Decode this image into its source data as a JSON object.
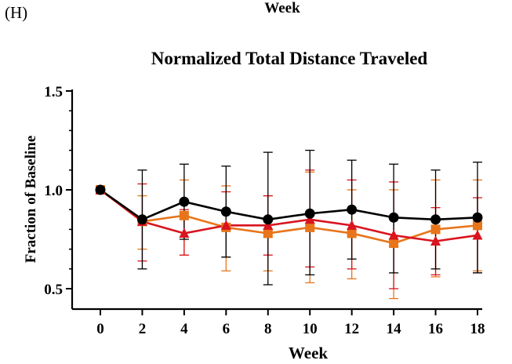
{
  "panel_label": "(H)",
  "top_label": "Week",
  "chart_data": {
    "type": "line",
    "title": "Normalized Total  Distance  Traveled",
    "xlabel": "Week",
    "ylabel": "Fraction of Baseline",
    "x": [
      0,
      2,
      4,
      6,
      8,
      10,
      12,
      14,
      16,
      18
    ],
    "xlim": [
      0,
      18
    ],
    "ylim": [
      0.45,
      1.5
    ],
    "y_ticks": [
      0.5,
      1.0,
      1.5
    ],
    "y_tick_labels": [
      "0.5",
      "1.0",
      "1.5"
    ],
    "x_tick_labels": [
      "0",
      "2",
      "4",
      "6",
      "8",
      "10",
      "12",
      "14",
      "16",
      "18"
    ],
    "grid": false,
    "series": [
      {
        "color": "#e8751a",
        "marker": "square",
        "values": [
          1.0,
          0.84,
          0.87,
          0.81,
          0.78,
          0.81,
          0.78,
          0.73,
          0.8,
          0.82
        ],
        "err_high": [
          1.0,
          0.97,
          1.05,
          1.02,
          0.97,
          1.09,
          1.0,
          1.0,
          1.05,
          1.05
        ],
        "err_low": [
          1.0,
          0.7,
          0.67,
          0.59,
          0.59,
          0.53,
          0.55,
          0.45,
          0.56,
          0.59
        ]
      },
      {
        "color": "#d9141e",
        "marker": "triangle",
        "values": [
          1.0,
          0.84,
          0.78,
          0.82,
          0.82,
          0.85,
          0.82,
          0.77,
          0.74,
          0.77
        ],
        "err_high": [
          1.0,
          1.03,
          0.9,
          0.99,
          0.97,
          1.1,
          1.05,
          1.04,
          0.91,
          0.96
        ],
        "err_low": [
          1.0,
          0.64,
          0.67,
          0.66,
          0.67,
          0.61,
          0.6,
          0.5,
          0.57,
          0.58
        ]
      },
      {
        "color": "#000000",
        "marker": "circle",
        "values": [
          1.0,
          0.85,
          0.94,
          0.89,
          0.85,
          0.88,
          0.9,
          0.86,
          0.85,
          0.86
        ],
        "err_high": [
          1.0,
          1.1,
          1.13,
          1.12,
          1.19,
          1.2,
          1.15,
          1.13,
          1.1,
          1.14
        ],
        "err_low": [
          1.0,
          0.6,
          0.75,
          0.66,
          0.52,
          0.57,
          0.65,
          0.58,
          0.6,
          0.58
        ]
      }
    ]
  }
}
